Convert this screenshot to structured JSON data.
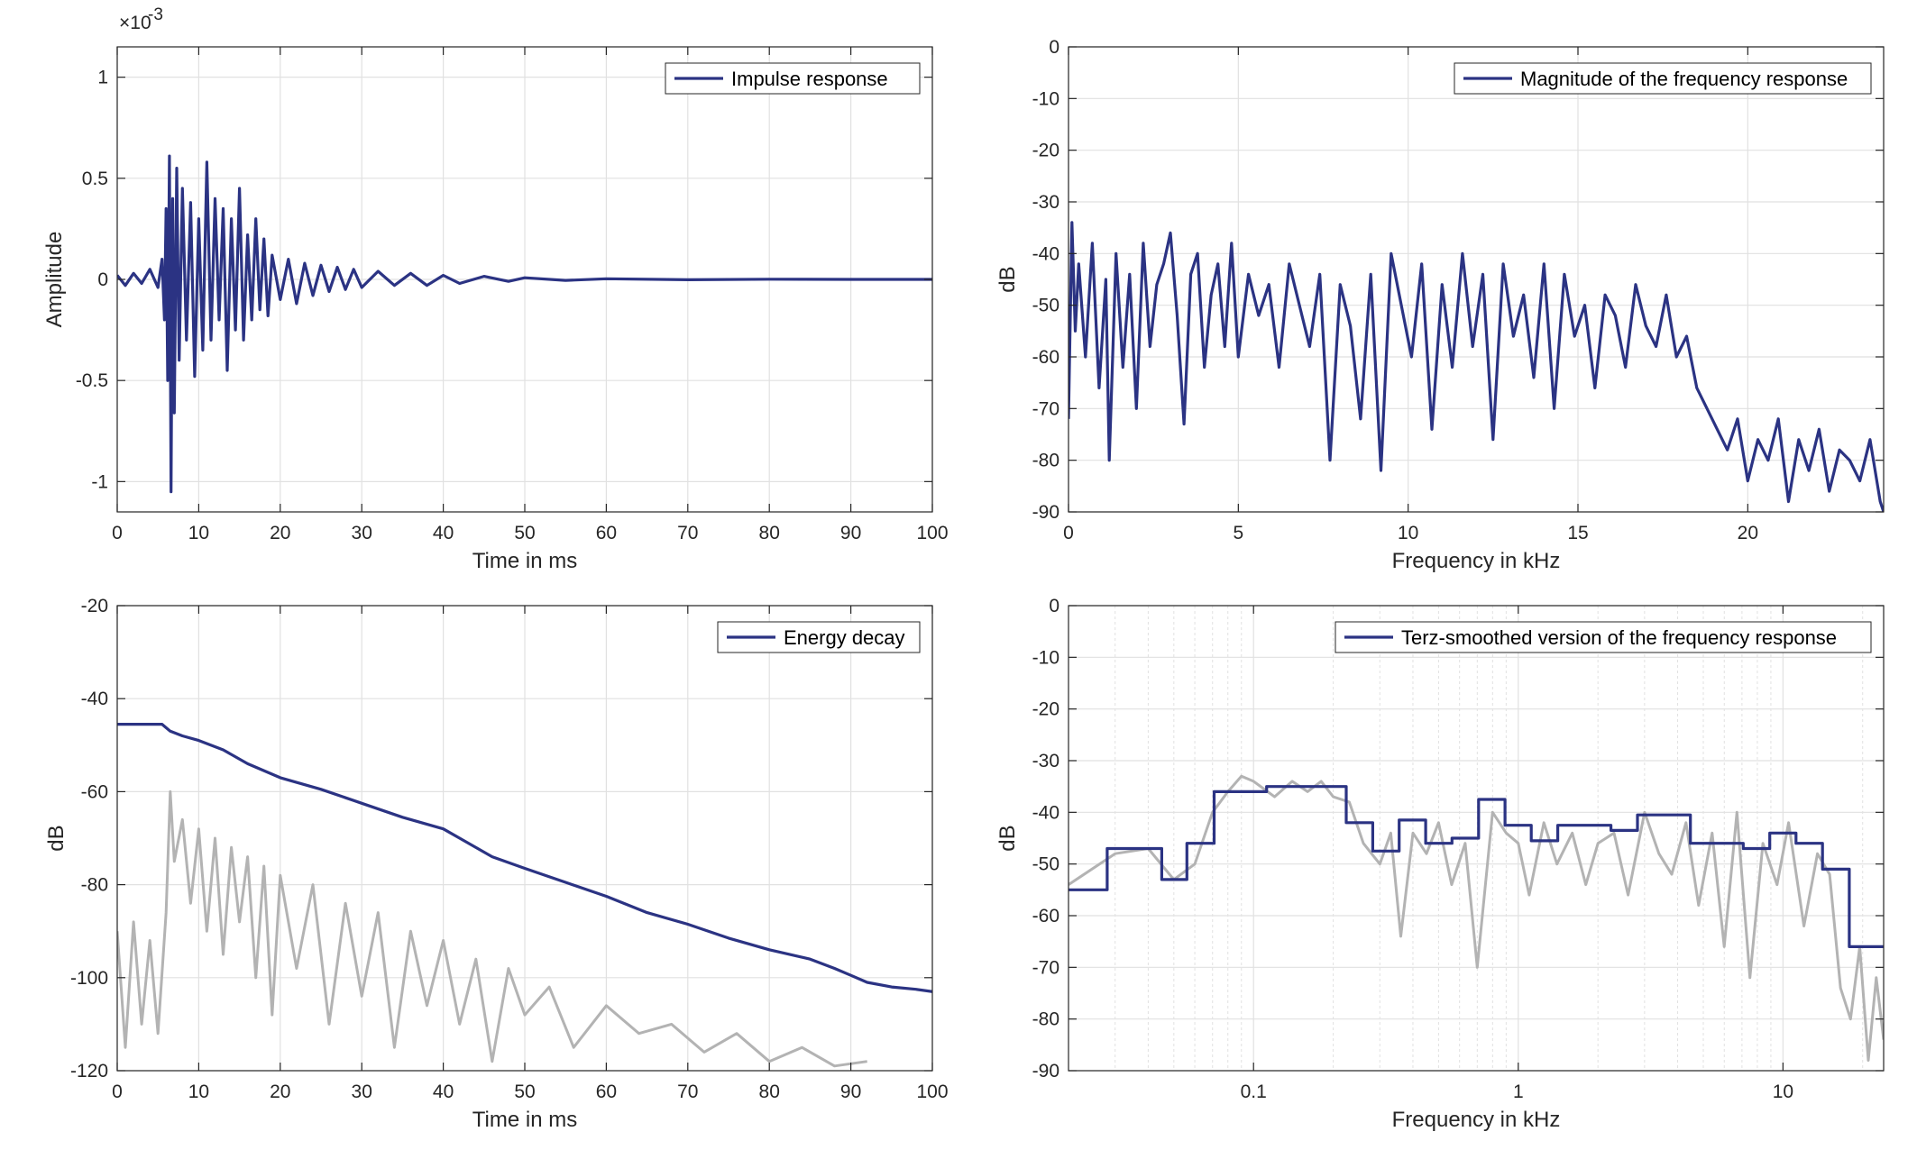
{
  "colors": {
    "series": "#2b3383",
    "background_trace": "#b3b3b3",
    "grid": "#e1e1e1",
    "axes": "#262626"
  },
  "chart_data": [
    {
      "id": "impulse",
      "type": "line",
      "xlabel": "Time in ms",
      "ylabel": "Amplitude",
      "xlim": [
        0,
        100
      ],
      "ylim": [
        -1.15,
        1.15
      ],
      "xticks": [
        0,
        10,
        20,
        30,
        40,
        50,
        60,
        70,
        80,
        90,
        100
      ],
      "yticks": [
        -1,
        -0.5,
        0,
        0.5,
        1
      ],
      "ytick_labels": [
        "-1",
        "-0.5",
        "0",
        "0.5",
        "1"
      ],
      "y_exponent_base": "×10",
      "y_exponent": "-3",
      "grid": true,
      "legend": {
        "label": "Impulse response",
        "placement": "top-right"
      },
      "series": [
        {
          "name": "Impulse response",
          "x": [
            0,
            1,
            2,
            3,
            4,
            5,
            5.5,
            5.8,
            6.0,
            6.2,
            6.4,
            6.6,
            6.8,
            7.0,
            7.3,
            7.6,
            8.0,
            8.5,
            9.0,
            9.5,
            10.0,
            10.5,
            11.0,
            11.5,
            12.0,
            12.5,
            13.0,
            13.5,
            14.0,
            14.5,
            15.0,
            15.5,
            16.0,
            16.5,
            17.0,
            17.5,
            18.0,
            18.5,
            19.0,
            20,
            21,
            22,
            23,
            24,
            25,
            26,
            27,
            28,
            29,
            30,
            32,
            34,
            36,
            38,
            40,
            42,
            45,
            48,
            50,
            55,
            60,
            70,
            80,
            90,
            100
          ],
          "y": [
            0.02,
            -0.03,
            0.03,
            -0.02,
            0.05,
            -0.04,
            0.1,
            -0.2,
            0.35,
            -0.5,
            0.61,
            -1.05,
            0.4,
            -0.66,
            0.55,
            -0.4,
            0.45,
            -0.3,
            0.38,
            -0.48,
            0.3,
            -0.35,
            0.58,
            -0.3,
            0.4,
            -0.2,
            0.35,
            -0.45,
            0.3,
            -0.25,
            0.45,
            -0.3,
            0.22,
            -0.2,
            0.3,
            -0.15,
            0.2,
            -0.18,
            0.12,
            -0.1,
            0.1,
            -0.12,
            0.08,
            -0.08,
            0.07,
            -0.06,
            0.06,
            -0.05,
            0.05,
            -0.04,
            0.04,
            -0.03,
            0.03,
            -0.03,
            0.02,
            -0.02,
            0.015,
            -0.01,
            0.008,
            -0.005,
            0.003,
            -0.002,
            0.001,
            0,
            0
          ]
        }
      ]
    },
    {
      "id": "magnitude",
      "type": "line",
      "xlabel": "Frequency in kHz",
      "ylabel": "dB",
      "xlim": [
        0,
        24
      ],
      "ylim": [
        -90,
        0
      ],
      "xticks": [
        0,
        5,
        10,
        15,
        20
      ],
      "yticks": [
        -90,
        -80,
        -70,
        -60,
        -50,
        -40,
        -30,
        -20,
        -10,
        0
      ],
      "grid": true,
      "legend": {
        "label": "Magnitude of the frequency response",
        "placement": "top-right"
      },
      "series": [
        {
          "name": "Magnitude of the frequency response",
          "x": [
            0,
            0.1,
            0.2,
            0.3,
            0.5,
            0.7,
            0.9,
            1.1,
            1.2,
            1.4,
            1.6,
            1.8,
            2.0,
            2.2,
            2.4,
            2.6,
            2.8,
            3.0,
            3.2,
            3.4,
            3.6,
            3.8,
            4.0,
            4.2,
            4.4,
            4.6,
            4.8,
            5.0,
            5.3,
            5.6,
            5.9,
            6.2,
            6.5,
            6.8,
            7.1,
            7.4,
            7.7,
            8.0,
            8.3,
            8.6,
            8.9,
            9.2,
            9.5,
            9.8,
            10.1,
            10.4,
            10.7,
            11.0,
            11.3,
            11.6,
            11.9,
            12.2,
            12.5,
            12.8,
            13.1,
            13.4,
            13.7,
            14.0,
            14.3,
            14.6,
            14.9,
            15.2,
            15.5,
            15.8,
            16.1,
            16.4,
            16.7,
            17.0,
            17.3,
            17.6,
            17.9,
            18.2,
            18.5,
            18.8,
            19.1,
            19.4,
            19.7,
            20.0,
            20.3,
            20.6,
            20.9,
            21.2,
            21.5,
            21.8,
            22.1,
            22.4,
            22.7,
            23.0,
            23.3,
            23.6,
            23.9,
            24.0
          ],
          "y": [
            -72,
            -34,
            -55,
            -42,
            -60,
            -38,
            -66,
            -45,
            -80,
            -40,
            -62,
            -44,
            -70,
            -38,
            -58,
            -46,
            -42,
            -36,
            -52,
            -73,
            -44,
            -40,
            -62,
            -48,
            -42,
            -58,
            -38,
            -60,
            -44,
            -52,
            -46,
            -62,
            -42,
            -50,
            -58,
            -44,
            -80,
            -46,
            -54,
            -72,
            -44,
            -82,
            -40,
            -50,
            -60,
            -42,
            -74,
            -46,
            -62,
            -40,
            -58,
            -44,
            -76,
            -42,
            -56,
            -48,
            -64,
            -42,
            -70,
            -44,
            -56,
            -50,
            -66,
            -48,
            -52,
            -62,
            -46,
            -54,
            -58,
            -48,
            -60,
            -56,
            -66,
            -70,
            -74,
            -78,
            -72,
            -84,
            -76,
            -80,
            -72,
            -88,
            -76,
            -82,
            -74,
            -86,
            -78,
            -80,
            -84,
            -76,
            -88,
            -90
          ]
        }
      ]
    },
    {
      "id": "energy",
      "type": "line",
      "xlabel": "Time in ms",
      "ylabel": "dB",
      "xlim": [
        0,
        100
      ],
      "ylim": [
        -120,
        -20
      ],
      "xticks": [
        0,
        10,
        20,
        30,
        40,
        50,
        60,
        70,
        80,
        90,
        100
      ],
      "yticks": [
        -120,
        -100,
        -80,
        -60,
        -40,
        -20
      ],
      "grid": true,
      "legend": {
        "label": "Energy decay",
        "placement": "top-right"
      },
      "series": [
        {
          "name": "Energy decay",
          "x": [
            0,
            5.5,
            6.5,
            8,
            10,
            13,
            16,
            20,
            25,
            30,
            35,
            40,
            42,
            46,
            50,
            55,
            60,
            65,
            70,
            75,
            80,
            85,
            88,
            90,
            92,
            95,
            98,
            100
          ],
          "y": [
            -45.5,
            -45.5,
            -47,
            -48,
            -49,
            -51,
            -54,
            -57,
            -59.5,
            -62.5,
            -65.5,
            -68,
            -70,
            -74,
            -76.5,
            -79.5,
            -82.5,
            -86,
            -88.5,
            -91.5,
            -94,
            -96,
            -98,
            -99.5,
            -101,
            -102,
            -102.5,
            -103
          ]
        },
        {
          "x": [
            0,
            1,
            2,
            3,
            4,
            5,
            6,
            6.5,
            7,
            8,
            9,
            10,
            11,
            12,
            13,
            14,
            15,
            16,
            17,
            18,
            19,
            20,
            22,
            24,
            26,
            28,
            30,
            32,
            34,
            36,
            38,
            40,
            42,
            44,
            46,
            48,
            50,
            53,
            56,
            60,
            64,
            68,
            72,
            76,
            80,
            84,
            88,
            92
          ],
          "y": [
            -90,
            -115,
            -88,
            -110,
            -92,
            -112,
            -86,
            -60,
            -75,
            -66,
            -84,
            -68,
            -90,
            -70,
            -95,
            -72,
            -88,
            -74,
            -100,
            -76,
            -108,
            -78,
            -98,
            -80,
            -110,
            -84,
            -104,
            -86,
            -115,
            -90,
            -106,
            -92,
            -110,
            -96,
            -118,
            -98,
            -108,
            -102,
            -115,
            -106,
            -112,
            -110,
            -116,
            -112,
            -118,
            -115,
            -119,
            -118
          ]
        }
      ]
    },
    {
      "id": "terz",
      "type": "line",
      "xlabel": "Frequency in kHz",
      "ylabel": "dB",
      "xscale": "log",
      "xlim": [
        0.02,
        24
      ],
      "ylim": [
        -90,
        0
      ],
      "xticks": [
        0.1,
        1,
        10
      ],
      "xtick_labels": [
        "0.1",
        "1",
        "10"
      ],
      "yticks": [
        -90,
        -80,
        -70,
        -60,
        -50,
        -40,
        -30,
        -20,
        -10,
        0
      ],
      "grid": true,
      "legend": {
        "label": "Terz-smoothed version of the frequency response",
        "placement": "top-right"
      },
      "series": [
        {
          "name": "Terz-smoothed version of the frequency response",
          "x": [
            0.02,
            0.028,
            0.028,
            0.045,
            0.045,
            0.056,
            0.056,
            0.071,
            0.071,
            0.112,
            0.112,
            0.224,
            0.224,
            0.282,
            0.282,
            0.355,
            0.355,
            0.447,
            0.447,
            0.562,
            0.562,
            0.708,
            0.708,
            0.891,
            0.891,
            1.12,
            1.12,
            1.41,
            1.41,
            2.24,
            2.24,
            2.82,
            2.82,
            4.47,
            4.47,
            7.08,
            7.08,
            8.91,
            8.91,
            11.2,
            11.2,
            14.1,
            14.1,
            17.8,
            17.8,
            24
          ],
          "y": [
            -55,
            -55,
            -47,
            -47,
            -53,
            -53,
            -46,
            -46,
            -36,
            -36,
            -35,
            -35,
            -42,
            -42,
            -47.5,
            -47.5,
            -41.5,
            -41.5,
            -46,
            -46,
            -45,
            -45,
            -37.5,
            -37.5,
            -42.5,
            -42.5,
            -45.5,
            -45.5,
            -42.5,
            -42.5,
            -43.5,
            -43.5,
            -40.5,
            -40.5,
            -46,
            -46,
            -47,
            -47,
            -44,
            -44,
            -46,
            -46,
            -51,
            -51,
            -66,
            -66
          ]
        },
        {
          "x": [
            0.02,
            0.03,
            0.04,
            0.05,
            0.06,
            0.07,
            0.08,
            0.09,
            0.1,
            0.12,
            0.14,
            0.16,
            0.18,
            0.2,
            0.23,
            0.26,
            0.3,
            0.33,
            0.36,
            0.4,
            0.45,
            0.5,
            0.56,
            0.63,
            0.7,
            0.8,
            0.9,
            1.0,
            1.1,
            1.25,
            1.4,
            1.6,
            1.8,
            2.0,
            2.3,
            2.6,
            3.0,
            3.4,
            3.8,
            4.3,
            4.8,
            5.4,
            6.0,
            6.7,
            7.5,
            8.4,
            9.5,
            10.5,
            12,
            13.5,
            15,
            16.5,
            18,
            19.5,
            21,
            22.5,
            24
          ],
          "y": [
            -54,
            -48,
            -47,
            -53,
            -50,
            -40,
            -36,
            -33,
            -34,
            -37,
            -34,
            -36,
            -34,
            -37,
            -38,
            -46,
            -50,
            -44,
            -64,
            -44,
            -48,
            -42,
            -54,
            -46,
            -70,
            -40,
            -44,
            -46,
            -56,
            -42,
            -50,
            -44,
            -54,
            -46,
            -44,
            -56,
            -40,
            -48,
            -52,
            -42,
            -58,
            -44,
            -66,
            -40,
            -72,
            -46,
            -54,
            -42,
            -62,
            -48,
            -52,
            -74,
            -80,
            -66,
            -88,
            -72,
            -84
          ]
        }
      ]
    }
  ]
}
